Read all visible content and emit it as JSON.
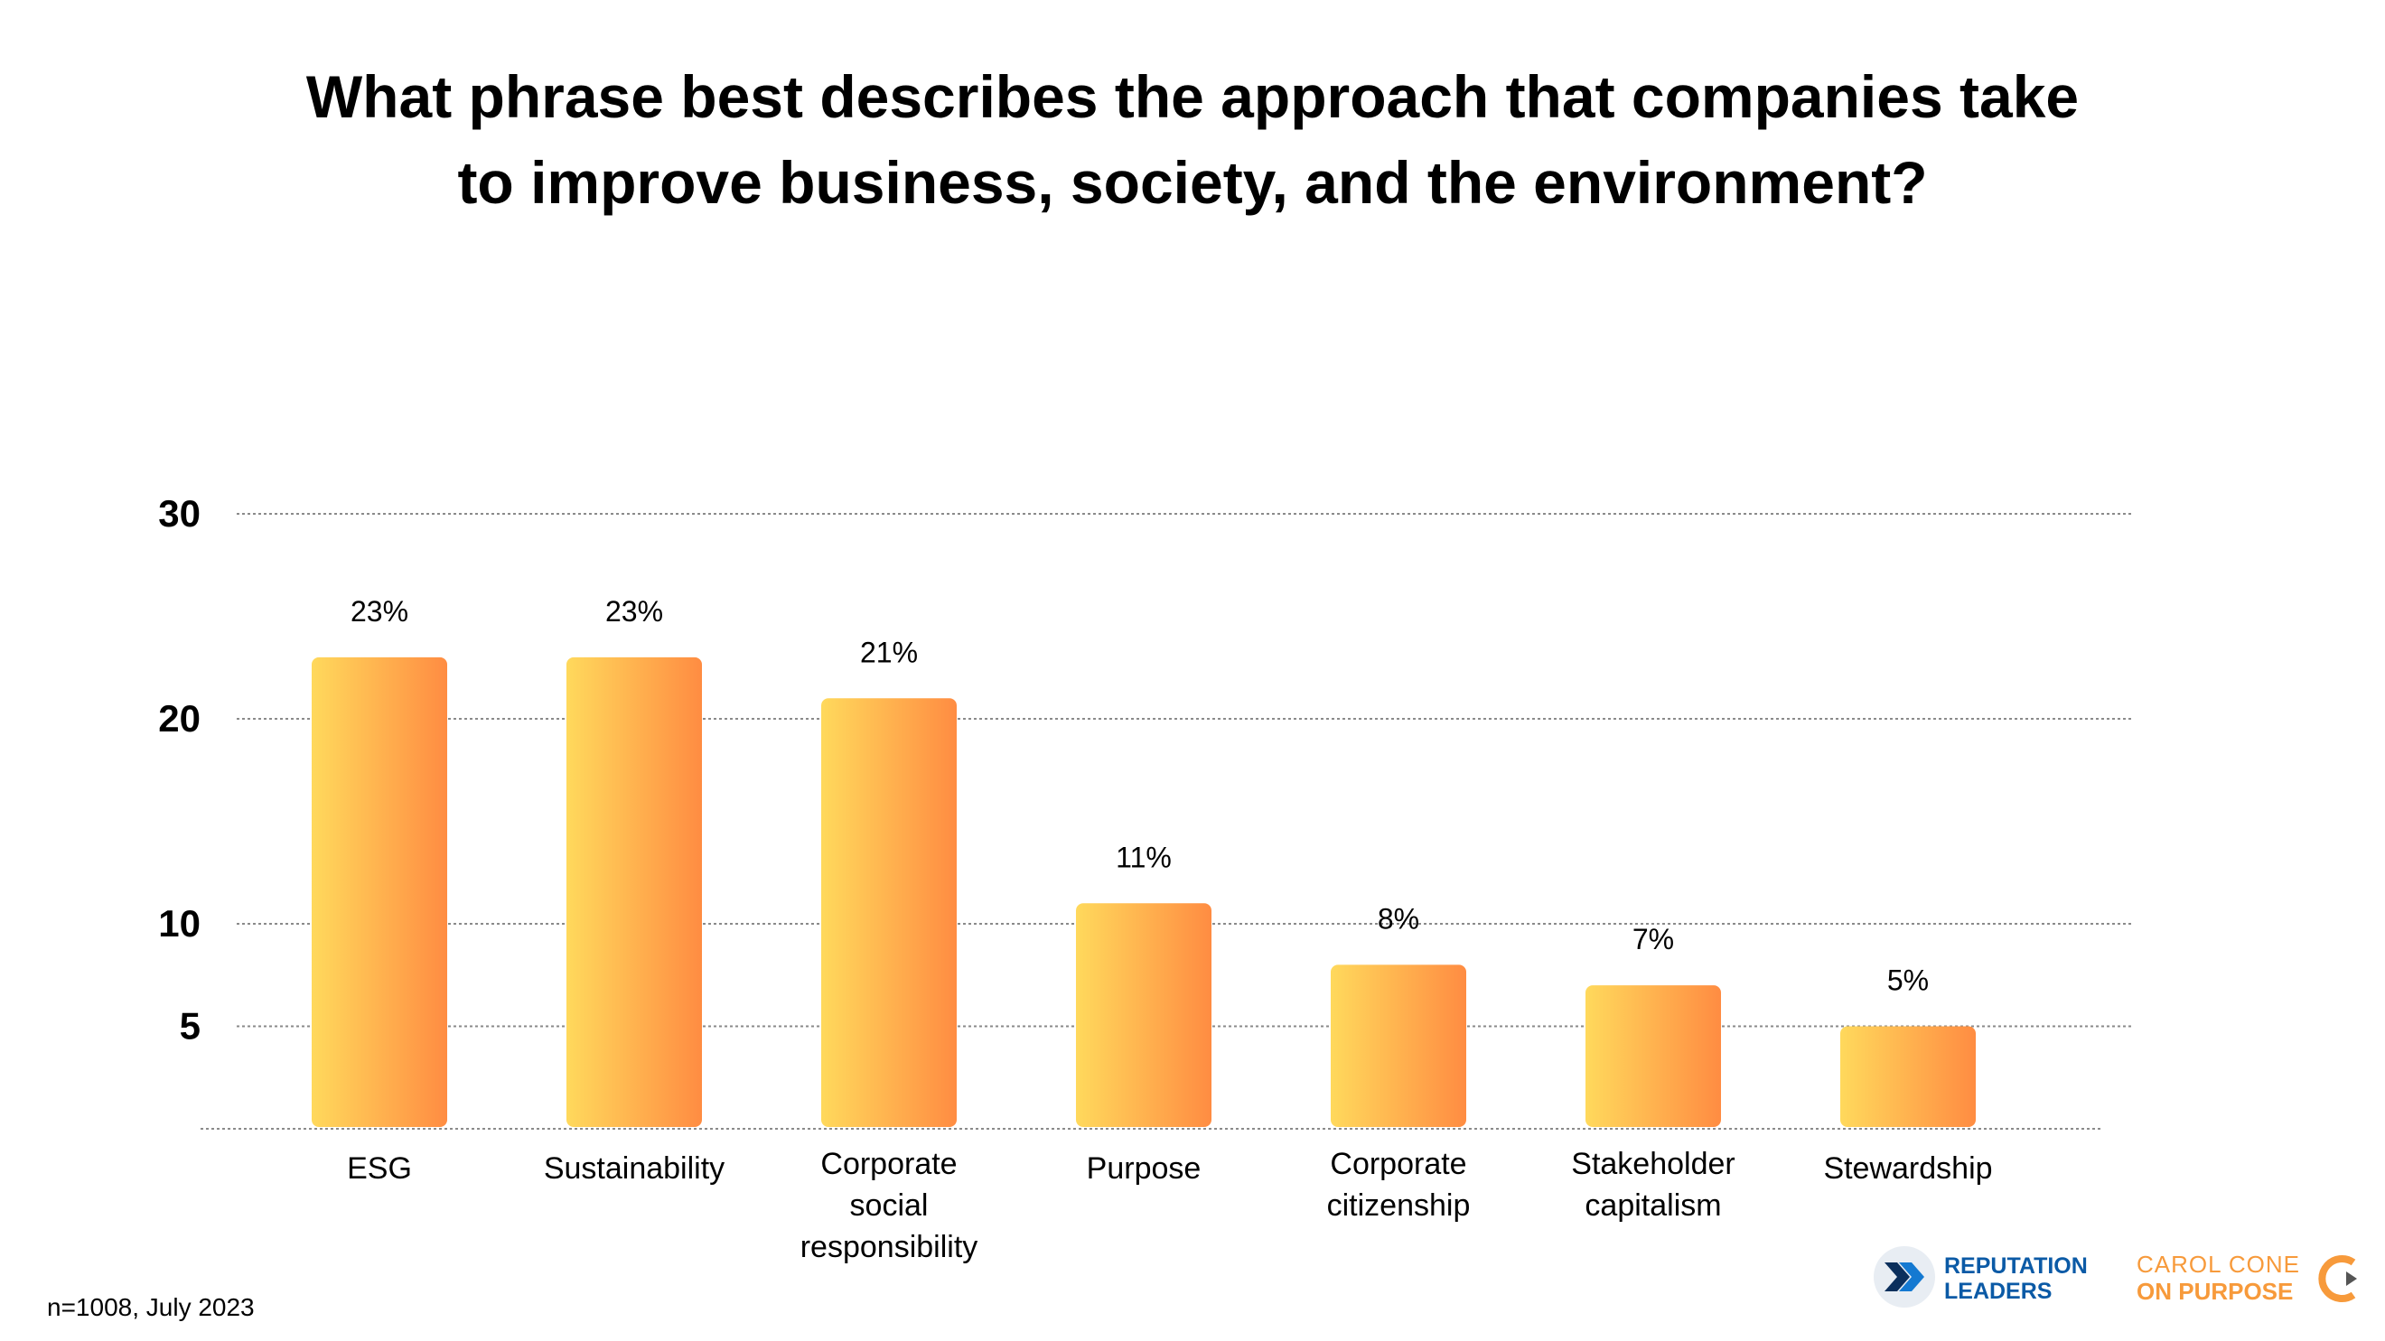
{
  "title_lines": [
    "What phrase best describes the approach that companies take",
    "to improve business, society, and the environment?"
  ],
  "footnote": "n=1008, July 2023",
  "logos": {
    "reputation_leaders": [
      "REPUTATION",
      "LEADERS"
    ],
    "carol_cone": [
      "CAROL CONE",
      "ON PURPOSE"
    ]
  },
  "colors": {
    "bar_gradient_start": "#ffd95c",
    "bar_gradient_end": "#ff8c42",
    "gridline": "#8a8a8a",
    "logo_blue": "#0b5aa6",
    "logo_orange": "#f79a3b"
  },
  "chart_data": {
    "type": "bar",
    "title": "What phrase best describes the approach that companies take to improve business, society, and the environment?",
    "categories": [
      [
        "ESG"
      ],
      [
        "Sustainability"
      ],
      [
        "Corporate",
        "social",
        "responsibility"
      ],
      [
        "Purpose"
      ],
      [
        "Corporate",
        "citizenship"
      ],
      [
        "Stakeholder",
        "capitalism"
      ],
      [
        "Stewardship"
      ]
    ],
    "values": [
      23,
      23,
      21,
      11,
      8,
      7,
      5
    ],
    "data_labels": [
      "23%",
      "23%",
      "21%",
      "11%",
      "8%",
      "7%",
      "5%"
    ],
    "yticks": [
      5,
      10,
      20,
      30
    ],
    "ylim": [
      0,
      30
    ],
    "grid": true,
    "legend": "none"
  }
}
